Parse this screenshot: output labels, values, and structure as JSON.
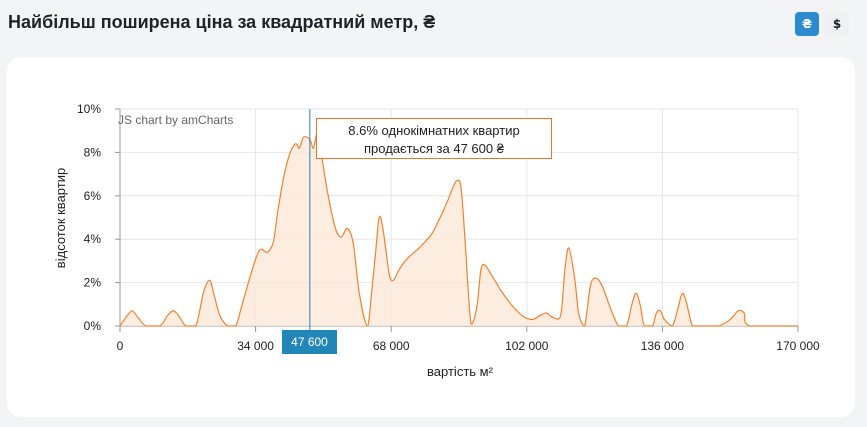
{
  "page": {
    "title": "Найбільш поширена ціна за квадратний метр, ₴",
    "currency_buttons": [
      {
        "label": "₴",
        "active": true
      },
      {
        "label": "$",
        "active": false
      }
    ]
  },
  "chart_data": {
    "type": "area",
    "credit": "JS chart by amCharts",
    "xlabel": "вартість м²",
    "ylabel": "відсоток квартир",
    "xlim": [
      0,
      170000
    ],
    "ylim": [
      0,
      10
    ],
    "x_ticks": [
      "0",
      "34 000",
      "68 000",
      "102 000",
      "136 000",
      "170 000"
    ],
    "y_ticks": [
      "0%",
      "2%",
      "4%",
      "6%",
      "8%",
      "10%"
    ],
    "grid": true,
    "series": [
      {
        "x": [
          0,
          1500,
          3000,
          4500,
          6500,
          10000,
          12000,
          13500,
          15000,
          16500,
          19000,
          21000,
          22500,
          23500,
          25000,
          27000,
          29000,
          30500,
          33000,
          35000,
          37000,
          38500,
          39500,
          41000,
          42500,
          44000,
          45000,
          46000,
          47600,
          48500,
          49500,
          50500,
          52000,
          54000,
          55500,
          57000,
          58500,
          60000,
          62000,
          63000,
          64000,
          65000,
          66000,
          67500,
          68500,
          70000,
          72000,
          75000,
          78000,
          80000,
          82000,
          83500,
          84500,
          85500,
          86500,
          88000,
          89500,
          90500,
          91500,
          93000,
          96000,
          99000,
          101500,
          103500,
          105500,
          107000,
          108500,
          110500,
          111500,
          112500,
          114000,
          115000,
          116500,
          118000,
          119500,
          121000,
          123000,
          125000,
          127000,
          128500,
          129500,
          130500,
          131500,
          133500,
          134500,
          135500,
          136500,
          138500,
          140000,
          141000,
          142000,
          143500,
          145000,
          150000,
          153000,
          155000,
          156500,
          158000,
          170000
        ],
        "y": [
          0,
          0.4,
          0.7,
          0.4,
          0,
          0,
          0.5,
          0.7,
          0.4,
          0,
          0,
          1.6,
          2.1,
          1.5,
          0.5,
          0,
          0,
          0.9,
          2.5,
          3.5,
          3.4,
          3.9,
          5.2,
          6.8,
          7.9,
          8.4,
          8.2,
          8.7,
          8.6,
          8.2,
          8.9,
          7.9,
          6.2,
          4.5,
          4.1,
          4.5,
          3.8,
          1.5,
          0,
          1.4,
          3.2,
          5.0,
          4.4,
          2.4,
          2.1,
          2.6,
          3.1,
          3.6,
          4.2,
          4.9,
          5.7,
          6.4,
          6.7,
          6.4,
          4.0,
          0.1,
          0.9,
          2.6,
          2.8,
          2.4,
          1.5,
          0.8,
          0.4,
          0.3,
          0.5,
          0.6,
          0.4,
          0.5,
          2.5,
          3.6,
          2.2,
          0.6,
          0,
          1.9,
          2.2,
          1.8,
          0.8,
          0,
          0,
          1.1,
          1.5,
          0.9,
          0,
          0,
          0.6,
          0.7,
          0.3,
          0,
          0.9,
          1.5,
          1.1,
          0,
          0,
          0,
          0.3,
          0.7,
          0.6,
          0,
          0
        ]
      }
    ],
    "cursor": {
      "x_label": "47 600",
      "tooltip_line1": "8.6% однокімнатних квартир",
      "tooltip_line2": "продається за 47 600 ₴"
    },
    "colors": {
      "line": "#f0822e",
      "fill": "#fde9d9",
      "cursor": "#2386b8"
    }
  }
}
